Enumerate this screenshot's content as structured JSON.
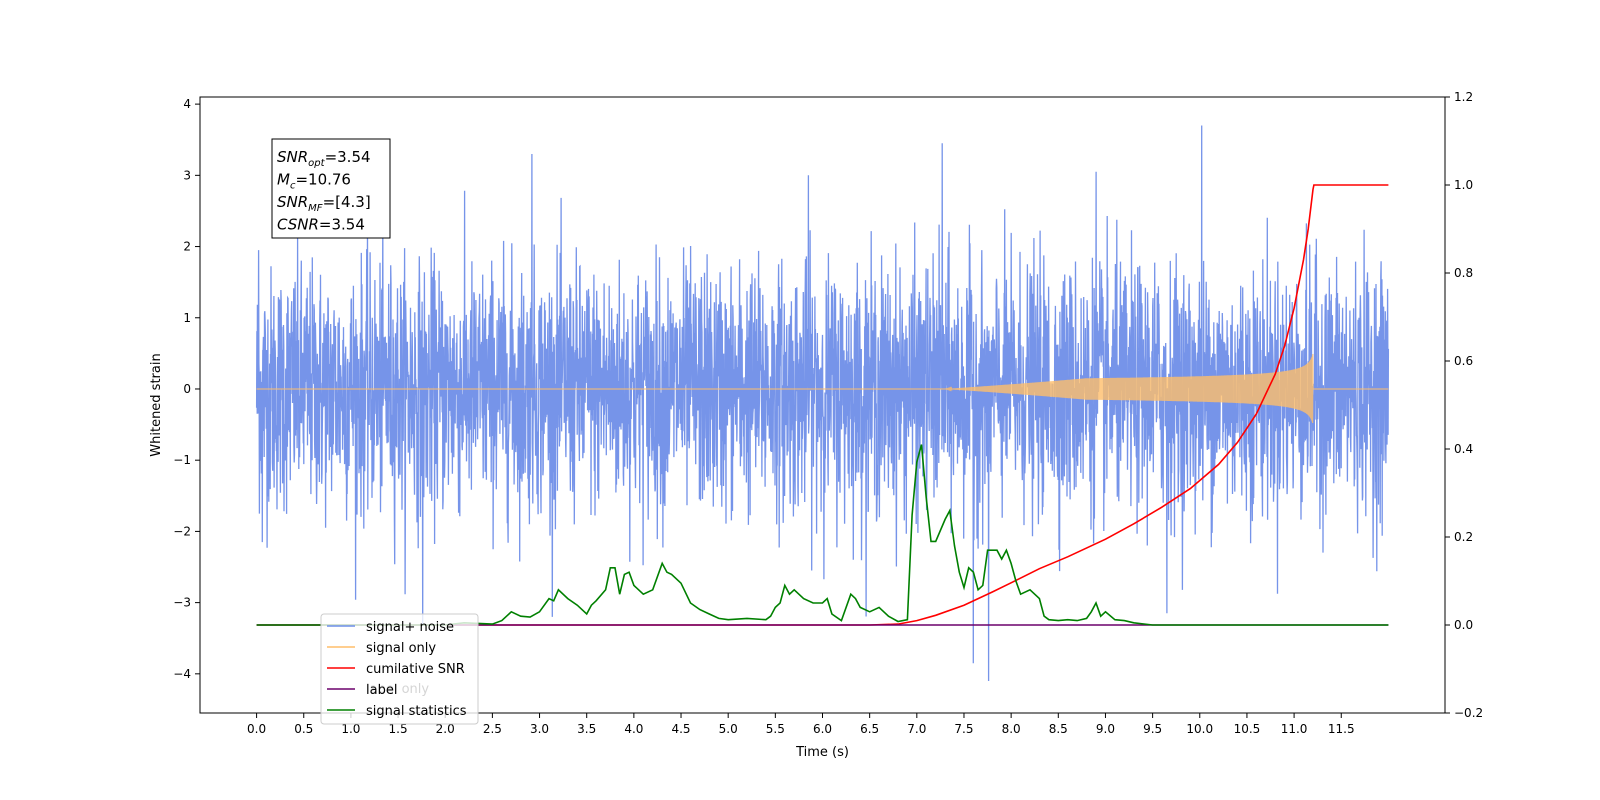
{
  "chart_data": {
    "type": "line",
    "xlabel": "Time (s)",
    "ylabel": "Whitened strain",
    "xlim": [
      -0.6,
      12.6
    ],
    "ylim": [
      -4.55,
      4.1
    ],
    "y2lim": [
      -0.2,
      1.2
    ],
    "x_ticks": [
      0.0,
      0.5,
      1.0,
      1.5,
      2.0,
      2.5,
      3.0,
      3.5,
      4.0,
      4.5,
      5.0,
      5.5,
      6.0,
      6.5,
      7.0,
      7.5,
      8.0,
      8.5,
      9.0,
      9.5,
      10.0,
      10.5,
      11.0,
      11.5
    ],
    "x_tick_labels": [
      "0.0",
      "0.5",
      "1.0",
      "1.5",
      "2.0",
      "2.5",
      "3.0",
      "3.5",
      "4.0",
      "4.5",
      "5.0",
      "5.5",
      "6.0",
      "6.5",
      "7.0",
      "7.5",
      "8.0",
      "8.5",
      "9.0",
      "9.5",
      "10.0",
      "10.5",
      "11.0",
      "11.5"
    ],
    "y_ticks": [
      -4,
      -3,
      -2,
      -1,
      0,
      1,
      2,
      3,
      4
    ],
    "y_tick_labels": [
      "−4",
      "−3",
      "−2",
      "−1",
      "0",
      "1",
      "2",
      "3",
      "4"
    ],
    "y2_ticks": [
      -0.2,
      0.0,
      0.2,
      0.4,
      0.6,
      0.8,
      1.0,
      1.2
    ],
    "y2_tick_labels": [
      "−0.2",
      "0.0",
      "0.2",
      "0.4",
      "0.6",
      "0.8",
      "1.0",
      "1.2"
    ],
    "grid": false,
    "legend_position": "lower-left",
    "annotation": {
      "lines": [
        {
          "base": "SNR",
          "sub": "opt",
          "rest": "=3.54"
        },
        {
          "base": "M",
          "sub": "c",
          "rest": "=10.76"
        },
        {
          "base": "SNR",
          "sub": "MF",
          "rest": "=[4.3]"
        },
        {
          "base": "CSNR",
          "sub": "",
          "rest": "=3.54"
        }
      ]
    },
    "hidden_legend_text": "label only",
    "series": [
      {
        "name": "signal+ noise",
        "axis": "left",
        "color": "#6f8ee8",
        "x_range": [
          0.0,
          12.0
        ],
        "noise_std": 0.85,
        "outliers": [
          {
            "x": 2.92,
            "y": 3.3
          },
          {
            "x": 7.27,
            "y": 3.45
          },
          {
            "x": 10.02,
            "y": 3.7
          },
          {
            "x": 7.6,
            "y": -3.85
          },
          {
            "x": 7.76,
            "y": -4.1
          },
          {
            "x": 1.76,
            "y": -3.3
          },
          {
            "x": 9.65,
            "y": -3.15
          },
          {
            "x": 0.02,
            "y": 1.95
          },
          {
            "x": 0.06,
            "y": -2.15
          },
          {
            "x": 5.85,
            "y": 3.0
          },
          {
            "x": 8.9,
            "y": 3.05
          }
        ]
      },
      {
        "name": "signal only",
        "axis": "left",
        "color": "#ffbe6a",
        "x_range": [
          0.0,
          12.0
        ],
        "chirp_start": 7.3,
        "merger_x": 11.2,
        "peak_amplitude": 0.5
      },
      {
        "name": "cumilative SNR",
        "axis": "right",
        "color": "#ff0000",
        "x": [
          0.0,
          6.5,
          6.8,
          7.0,
          7.2,
          7.5,
          7.8,
          8.0,
          8.3,
          8.6,
          9.0,
          9.3,
          9.6,
          9.9,
          10.2,
          10.4,
          10.6,
          10.8,
          10.9,
          11.0,
          11.1,
          11.15,
          11.2,
          11.21,
          12.0
        ],
        "values": [
          0.0,
          0.0,
          0.002,
          0.01,
          0.022,
          0.045,
          0.075,
          0.096,
          0.128,
          0.155,
          0.195,
          0.23,
          0.268,
          0.31,
          0.365,
          0.415,
          0.48,
          0.57,
          0.635,
          0.72,
          0.83,
          0.9,
          0.99,
          1.0,
          1.0
        ]
      },
      {
        "name": "label",
        "axis": "right",
        "color": "#6b006b",
        "x": [
          0.0,
          12.0
        ],
        "values": [
          0.0,
          0.0
        ]
      },
      {
        "name": "signal statistics",
        "axis": "right",
        "color": "#008000",
        "x": [
          0.0,
          2.0,
          2.2,
          2.5,
          2.6,
          2.7,
          2.8,
          2.9,
          3.0,
          3.1,
          3.15,
          3.2,
          3.3,
          3.4,
          3.5,
          3.55,
          3.6,
          3.7,
          3.75,
          3.8,
          3.85,
          3.9,
          3.95,
          4.0,
          4.1,
          4.2,
          4.3,
          4.35,
          4.4,
          4.5,
          4.6,
          4.7,
          4.8,
          4.9,
          5.0,
          5.2,
          5.4,
          5.45,
          5.5,
          5.55,
          5.6,
          5.65,
          5.7,
          5.8,
          5.9,
          6.0,
          6.05,
          6.1,
          6.2,
          6.3,
          6.35,
          6.4,
          6.5,
          6.6,
          6.7,
          6.8,
          6.9,
          6.95,
          7.0,
          7.05,
          7.1,
          7.15,
          7.2,
          7.3,
          7.35,
          7.4,
          7.45,
          7.5,
          7.55,
          7.6,
          7.65,
          7.7,
          7.75,
          7.8,
          7.85,
          7.9,
          7.95,
          8.0,
          8.05,
          8.1,
          8.2,
          8.3,
          8.35,
          8.4,
          8.5,
          8.6,
          8.7,
          8.8,
          8.85,
          8.9,
          8.95,
          9.0,
          9.1,
          9.2,
          9.3,
          9.5,
          10.0,
          12.0
        ],
        "values": [
          0.0,
          0.0,
          0.005,
          0.002,
          0.01,
          0.03,
          0.02,
          0.018,
          0.03,
          0.06,
          0.055,
          0.08,
          0.06,
          0.045,
          0.025,
          0.045,
          0.055,
          0.08,
          0.13,
          0.13,
          0.07,
          0.115,
          0.12,
          0.09,
          0.07,
          0.08,
          0.14,
          0.12,
          0.115,
          0.095,
          0.05,
          0.035,
          0.025,
          0.015,
          0.012,
          0.015,
          0.012,
          0.02,
          0.04,
          0.05,
          0.09,
          0.07,
          0.08,
          0.06,
          0.05,
          0.05,
          0.06,
          0.025,
          0.01,
          0.07,
          0.06,
          0.04,
          0.03,
          0.04,
          0.02,
          0.008,
          0.012,
          0.25,
          0.37,
          0.41,
          0.29,
          0.19,
          0.19,
          0.24,
          0.26,
          0.18,
          0.12,
          0.085,
          0.13,
          0.12,
          0.08,
          0.09,
          0.17,
          0.17,
          0.17,
          0.15,
          0.17,
          0.14,
          0.1,
          0.07,
          0.08,
          0.06,
          0.02,
          0.012,
          0.01,
          0.012,
          0.01,
          0.015,
          0.03,
          0.05,
          0.02,
          0.03,
          0.012,
          0.01,
          0.005,
          0.0,
          0.0,
          0.0
        ]
      }
    ]
  }
}
